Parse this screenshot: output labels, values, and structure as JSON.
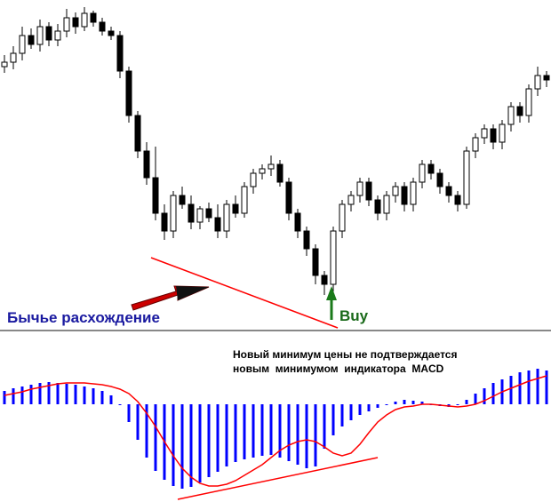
{
  "chart_data": [
    {
      "type": "candlestick",
      "ylim": [
        0,
        370
      ],
      "up_color": "#ffffff",
      "down_color": "#000000",
      "open": [
        295,
        300,
        310,
        330,
        320,
        340,
        325,
        335,
        350,
        340,
        355,
        345,
        335,
        330,
        290,
        240,
        200,
        170,
        130,
        110,
        150,
        140,
        120,
        135,
        125,
        110,
        140,
        130,
        160,
        175,
        180,
        185,
        165,
        130,
        110,
        90,
        60,
        50,
        110,
        140,
        150,
        165,
        145,
        130,
        150,
        160,
        140,
        165,
        185,
        175,
        160,
        150,
        140,
        200,
        215,
        225,
        210,
        230,
        250,
        240,
        270,
        285
      ],
      "high": [
        308,
        318,
        340,
        338,
        348,
        345,
        343,
        360,
        356,
        362,
        358,
        350,
        340,
        335,
        295,
        245,
        210,
        205,
        140,
        155,
        160,
        150,
        138,
        142,
        140,
        145,
        150,
        165,
        180,
        185,
        195,
        190,
        170,
        135,
        115,
        95,
        65,
        115,
        145,
        155,
        170,
        170,
        150,
        155,
        165,
        165,
        170,
        190,
        190,
        180,
        165,
        155,
        205,
        220,
        230,
        230,
        235,
        255,
        255,
        275,
        295,
        290
      ],
      "low": [
        288,
        292,
        302,
        315,
        312,
        318,
        318,
        328,
        332,
        335,
        340,
        330,
        325,
        282,
        232,
        192,
        162,
        122,
        100,
        102,
        135,
        112,
        112,
        120,
        102,
        102,
        125,
        125,
        152,
        168,
        172,
        160,
        122,
        102,
        82,
        50,
        38,
        42,
        102,
        132,
        142,
        138,
        122,
        122,
        142,
        132,
        132,
        158,
        168,
        152,
        142,
        132,
        135,
        192,
        208,
        202,
        202,
        222,
        232,
        232,
        262,
        272
      ],
      "close": [
        300,
        310,
        330,
        320,
        340,
        325,
        335,
        350,
        340,
        355,
        345,
        335,
        330,
        290,
        240,
        200,
        170,
        130,
        110,
        150,
        140,
        120,
        135,
        125,
        110,
        140,
        130,
        160,
        175,
        180,
        185,
        165,
        130,
        110,
        90,
        60,
        50,
        110,
        140,
        150,
        165,
        145,
        130,
        150,
        160,
        140,
        165,
        185,
        175,
        160,
        150,
        140,
        200,
        215,
        225,
        210,
        230,
        250,
        240,
        270,
        285,
        280
      ],
      "annotations": [
        "Бычье расхождение",
        "Buy"
      ]
    },
    {
      "type": "macd",
      "ylim": [
        -110,
        80
      ],
      "series": [
        {
          "name": "histogram",
          "color": "#0000ff",
          "values": [
            15,
            18,
            20,
            22,
            24,
            25,
            24,
            23,
            22,
            20,
            18,
            15,
            10,
            0,
            -20,
            -40,
            -60,
            -75,
            -85,
            -92,
            -95,
            -93,
            -88,
            -82,
            -76,
            -70,
            -65,
            -62,
            -60,
            -58,
            -57,
            -60,
            -64,
            -68,
            -72,
            -70,
            -50,
            -35,
            -25,
            -18,
            -12,
            -8,
            -4,
            0,
            3,
            5,
            4,
            3,
            0,
            -2,
            -3,
            -1,
            5,
            12,
            18,
            24,
            28,
            32,
            36,
            38,
            40,
            38
          ]
        },
        {
          "name": "signal",
          "color": "#ff0000",
          "values": [
            10,
            12,
            14,
            17,
            19,
            21,
            23,
            24,
            24,
            24,
            23,
            22,
            20,
            17,
            12,
            3,
            -10,
            -25,
            -42,
            -58,
            -72,
            -82,
            -89,
            -92,
            -92,
            -90,
            -86,
            -80,
            -74,
            -68,
            -60,
            -52,
            -46,
            -42,
            -40,
            -42,
            -48,
            -55,
            -58,
            -55,
            -45,
            -32,
            -20,
            -12,
            -6,
            -3,
            -2,
            0,
            0,
            -1,
            -2,
            -3,
            -2,
            0,
            4,
            9,
            14,
            18,
            22,
            26,
            29,
            32
          ]
        }
      ],
      "annotations": [
        "Новый минимум цены не подтверждается",
        "новым  минимумом  индикатора  MACD"
      ]
    }
  ]
}
